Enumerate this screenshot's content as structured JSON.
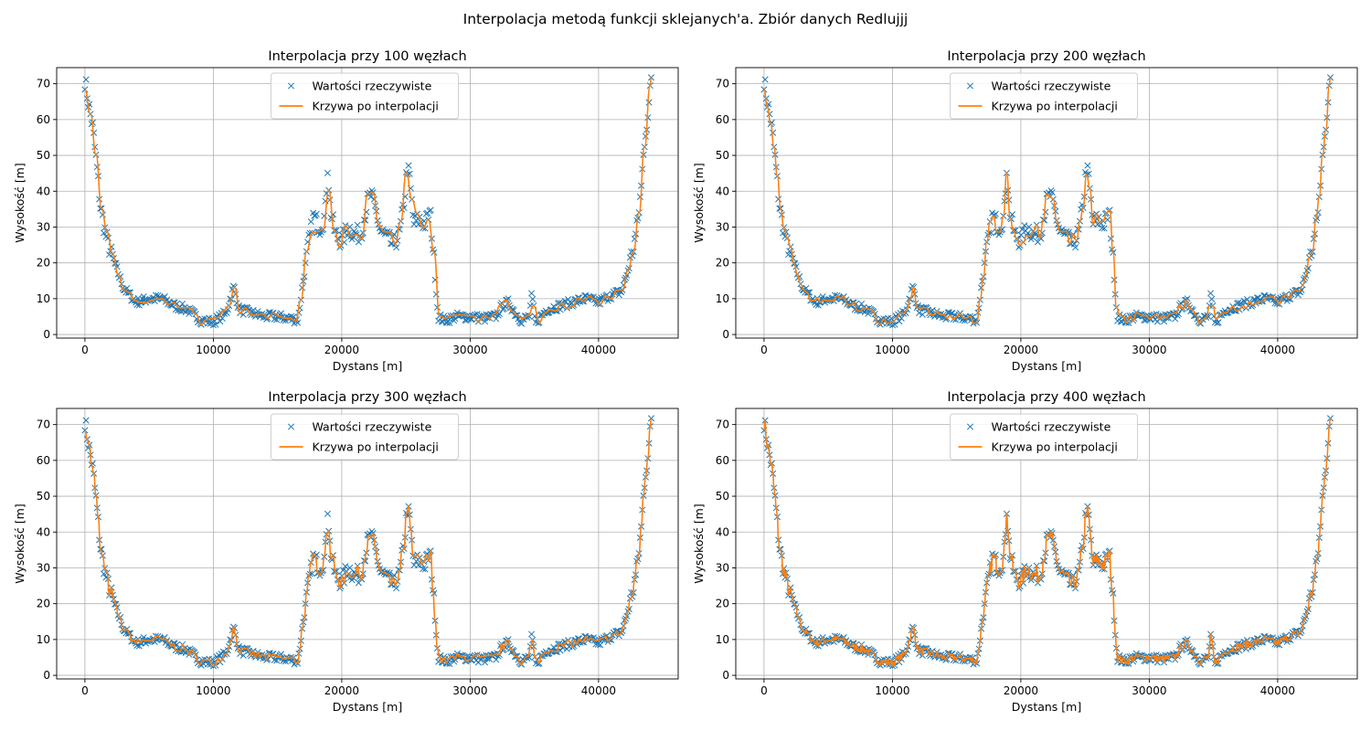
{
  "figure": {
    "suptitle": "Interpolacja metodą funkcji sklejanych'a. Zbiór danych Redlujjj"
  },
  "colors": {
    "measured": "#1f77b4",
    "interpolated": "#ff7f0e",
    "grid": "#b0b0b0"
  },
  "chart_data": [
    {
      "type": "line",
      "title": "Interpolacja przy 100 węzłach",
      "nodes": 100,
      "xlabel": "Dystans [m]",
      "ylabel": "Wysokość [m]",
      "xlim": [
        -2200,
        46200
      ],
      "ylim": [
        -1,
        74.5
      ],
      "xticks": [
        0,
        10000,
        20000,
        30000,
        40000
      ],
      "yticks": [
        0,
        10,
        20,
        30,
        40,
        50,
        60,
        70
      ],
      "grid": true,
      "legend": {
        "position": "top-center",
        "entries": [
          "Wartości rzeczywiste",
          "Krzywa po interpolacji"
        ]
      },
      "series": [
        {
          "name": "Wartości rzeczywiste",
          "marker": "x",
          "source": "measured"
        },
        {
          "name": "Krzywa po interpolacji",
          "marker": "line",
          "nodes": 100
        }
      ]
    },
    {
      "type": "line",
      "title": "Interpolacja przy 200 węzłach",
      "nodes": 200,
      "xlabel": "Dystans [m]",
      "ylabel": "Wysokość [m]",
      "xlim": [
        -2200,
        46200
      ],
      "ylim": [
        -1,
        74.5
      ],
      "xticks": [
        0,
        10000,
        20000,
        30000,
        40000
      ],
      "yticks": [
        0,
        10,
        20,
        30,
        40,
        50,
        60,
        70
      ],
      "grid": true,
      "legend": {
        "position": "top-center",
        "entries": [
          "Wartości rzeczywiste",
          "Krzywa po interpolacji"
        ]
      },
      "series": [
        {
          "name": "Wartości rzeczywiste",
          "marker": "x",
          "source": "measured"
        },
        {
          "name": "Krzywa po interpolacji",
          "marker": "line",
          "nodes": 200
        }
      ]
    },
    {
      "type": "line",
      "title": "Interpolacja przy 300 węzłach",
      "nodes": 300,
      "xlabel": "Dystans [m]",
      "ylabel": "Wysokość [m]",
      "xlim": [
        -2200,
        46200
      ],
      "ylim": [
        -1,
        74.5
      ],
      "xticks": [
        0,
        10000,
        20000,
        30000,
        40000
      ],
      "yticks": [
        0,
        10,
        20,
        30,
        40,
        50,
        60,
        70
      ],
      "grid": true,
      "legend": {
        "position": "top-center",
        "entries": [
          "Wartości rzeczywiste",
          "Krzywa po interpolacji"
        ]
      },
      "series": [
        {
          "name": "Wartości rzeczywiste",
          "marker": "x",
          "source": "measured"
        },
        {
          "name": "Krzywa po interpolacji",
          "marker": "line",
          "nodes": 300
        }
      ]
    },
    {
      "type": "line",
      "title": "Interpolacja przy 400 węzłach",
      "nodes": 400,
      "xlabel": "Dystans [m]",
      "ylabel": "Wysokość [m]",
      "xlim": [
        -2200,
        46200
      ],
      "ylim": [
        -1,
        74.5
      ],
      "xticks": [
        0,
        10000,
        20000,
        30000,
        40000
      ],
      "yticks": [
        0,
        10,
        20,
        30,
        40,
        50,
        60,
        70
      ],
      "grid": true,
      "legend": {
        "position": "top-center",
        "entries": [
          "Wartości rzeczywiste",
          "Krzywa po interpolacji"
        ]
      },
      "series": [
        {
          "name": "Wartości rzeczywiste",
          "marker": "x",
          "source": "measured"
        },
        {
          "name": "Krzywa po interpolacji",
          "marker": "line",
          "nodes": 400
        }
      ]
    }
  ],
  "measured_profile": {
    "x": [
      0,
      300,
      600,
      900,
      1200,
      1600,
      2000,
      2500,
      3000,
      3500,
      4000,
      5000,
      6000,
      7000,
      8000,
      9000,
      10000,
      11000,
      11600,
      12000,
      13000,
      14000,
      15000,
      16000,
      16600,
      17000,
      17400,
      17800,
      18300,
      18700,
      18900,
      19100,
      19500,
      20000,
      20500,
      21000,
      21500,
      22000,
      22300,
      22700,
      23000,
      23500,
      24000,
      24500,
      24900,
      25100,
      25300,
      25600,
      26000,
      26500,
      26900,
      27200,
      27500,
      28000,
      29000,
      30000,
      31000,
      32000,
      32500,
      33000,
      33500,
      34000,
      34600,
      34800,
      35100,
      35500,
      36000,
      37000,
      38000,
      39000,
      40000,
      41000,
      41800,
      42300,
      42700,
      43000,
      43300,
      43600,
      43900,
      44100
    ],
    "y": [
      71,
      64,
      58,
      48,
      36,
      28,
      23,
      18,
      13,
      11,
      9,
      10,
      10,
      8,
      7,
      4,
      3.5,
      6,
      13.5,
      7,
      6,
      5,
      5,
      4.5,
      4,
      15,
      25,
      33,
      30,
      33,
      47,
      35,
      28,
      26,
      30,
      28,
      28,
      37,
      39,
      34,
      29,
      27,
      25,
      28,
      38,
      47,
      43,
      31,
      32,
      31,
      34,
      20,
      5,
      4,
      5,
      5,
      4.5,
      5,
      8,
      9,
      6,
      4,
      5,
      11,
      3,
      5,
      7,
      8,
      9,
      10,
      9,
      11,
      12,
      18,
      24,
      30,
      40,
      55,
      63,
      71
    ]
  }
}
